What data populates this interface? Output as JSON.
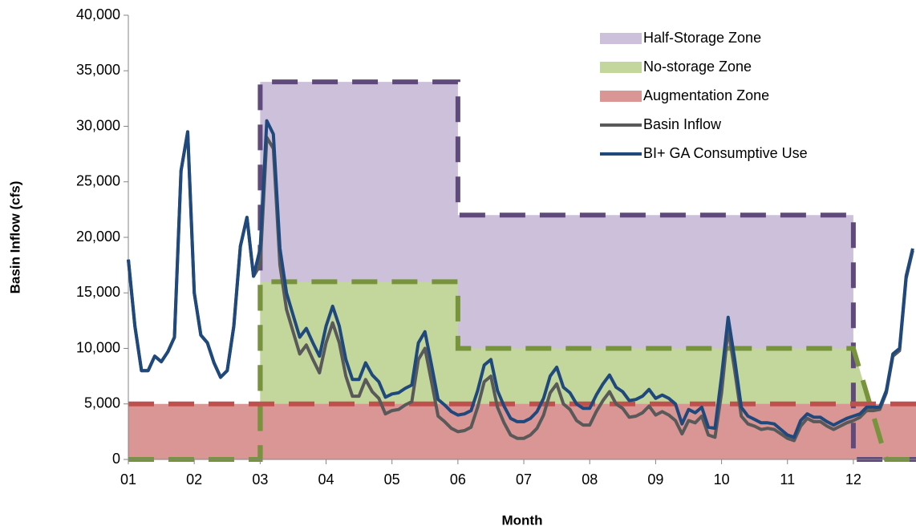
{
  "chart_data": {
    "type": "line",
    "xlabel": "Month",
    "ylabel": "Basin Inflow (cfs)",
    "xlim": [
      1,
      12.95
    ],
    "xticks": [
      {
        "value": 1,
        "label": "01"
      },
      {
        "value": 2,
        "label": "02"
      },
      {
        "value": 3,
        "label": "03"
      },
      {
        "value": 4,
        "label": "04"
      },
      {
        "value": 5,
        "label": "05"
      },
      {
        "value": 6,
        "label": "06"
      },
      {
        "value": 7,
        "label": "07"
      },
      {
        "value": 8,
        "label": "08"
      },
      {
        "value": 9,
        "label": "09"
      },
      {
        "value": 10,
        "label": "10"
      },
      {
        "value": 11,
        "label": "11"
      },
      {
        "value": 12,
        "label": "12"
      }
    ],
    "ylim": [
      0,
      40000
    ],
    "yticks": [
      0,
      {
        "value": 5000,
        "label": "5,000"
      },
      {
        "value": 10000,
        "label": "10,000"
      },
      {
        "value": 15000,
        "label": "15,000"
      },
      {
        "value": 20000,
        "label": "20,000"
      },
      {
        "value": 25000,
        "label": "25,000"
      },
      {
        "value": 30000,
        "label": "30,000"
      },
      {
        "value": 35000,
        "label": "35,000"
      },
      {
        "value": 40000,
        "label": "40,000"
      }
    ],
    "legend": "upper right",
    "x": [
      1.0,
      1.1,
      1.2,
      1.3,
      1.4,
      1.5,
      1.6,
      1.7,
      1.8,
      1.9,
      2.0,
      2.1,
      2.2,
      2.3,
      2.4,
      2.5,
      2.6,
      2.7,
      2.8,
      2.9,
      3.0,
      3.1,
      3.2,
      3.3,
      3.4,
      3.5,
      3.6,
      3.7,
      3.8,
      3.9,
      4.0,
      4.1,
      4.2,
      4.3,
      4.4,
      4.5,
      4.6,
      4.7,
      4.8,
      4.9,
      5.0,
      5.1,
      5.2,
      5.3,
      5.4,
      5.5,
      5.6,
      5.7,
      5.8,
      5.9,
      6.0,
      6.1,
      6.2,
      6.3,
      6.4,
      6.5,
      6.6,
      6.7,
      6.8,
      6.9,
      7.0,
      7.1,
      7.2,
      7.3,
      7.4,
      7.5,
      7.6,
      7.7,
      7.8,
      7.9,
      8.0,
      8.1,
      8.2,
      8.3,
      8.4,
      8.5,
      8.6,
      8.7,
      8.8,
      8.9,
      9.0,
      9.1,
      9.2,
      9.3,
      9.4,
      9.5,
      9.6,
      9.7,
      9.8,
      9.9,
      10.0,
      10.1,
      10.2,
      10.3,
      10.4,
      10.5,
      10.6,
      10.7,
      10.8,
      10.9,
      11.0,
      11.1,
      11.2,
      11.3,
      11.4,
      11.5,
      11.6,
      11.7,
      11.8,
      11.9,
      12.0,
      12.1,
      12.2,
      12.3,
      12.4,
      12.5,
      12.6,
      12.7,
      12.8,
      12.9
    ],
    "series": [
      {
        "name": "Half-Storage Zone",
        "fill": true,
        "color": "#ccc0da",
        "line_color": "#604a7b",
        "x": [
          1,
          3,
          3,
          6,
          6,
          12,
          12,
          12.95
        ],
        "values": [
          0,
          0,
          34000,
          34000,
          22000,
          22000,
          0,
          0
        ]
      },
      {
        "name": "No-storage Zone",
        "fill": true,
        "color": "#c3d69b",
        "line_color": "#77933c",
        "x": [
          1,
          3,
          3,
          6,
          6,
          12,
          12.5,
          12.95
        ],
        "values": [
          0,
          0,
          16000,
          16000,
          10000,
          10000,
          0,
          0
        ]
      },
      {
        "name": "Augmentation Zone",
        "fill": true,
        "color": "#d99694",
        "line_color": "#c0504d",
        "x": [
          1,
          12.95
        ],
        "values": [
          5000,
          5000
        ]
      },
      {
        "name": "Basin Inflow",
        "fill": false,
        "color": "#595959",
        "values": [
          18000,
          12000,
          8000,
          8000,
          9300,
          8800,
          9700,
          11000,
          26000,
          29500,
          15000,
          11200,
          10500,
          8700,
          7400,
          8000,
          12000,
          19200,
          21800,
          16500,
          17500,
          29000,
          28000,
          17500,
          13500,
          11500,
          9500,
          10300,
          9000,
          7800,
          10500,
          12300,
          10500,
          7500,
          5700,
          5700,
          7200,
          6100,
          5500,
          4100,
          4400,
          4500,
          4900,
          5200,
          9000,
          10000,
          7000,
          3900,
          3400,
          2800,
          2500,
          2600,
          2900,
          4700,
          7000,
          7500,
          4700,
          3300,
          2200,
          1900,
          1900,
          2200,
          2800,
          4000,
          6000,
          6800,
          5000,
          4500,
          3500,
          3100,
          3100,
          4300,
          5300,
          6100,
          5000,
          4600,
          3800,
          3900,
          4200,
          4800,
          4000,
          4300,
          4000,
          3500,
          2300,
          3500,
          3300,
          3900,
          2200,
          2000,
          6000,
          11800,
          8000,
          3900,
          3200,
          3000,
          2700,
          2800,
          2700,
          2300,
          1900,
          1700,
          3000,
          3700,
          3400,
          3400,
          3000,
          2700,
          3000,
          3300,
          3500,
          3800,
          4400,
          4400,
          4500,
          6000,
          9300,
          9800,
          16300,
          18800
        ]
      },
      {
        "name": "BI+ GA Consumptive Use",
        "fill": false,
        "color": "#1f497d",
        "values": [
          18000,
          12000,
          8000,
          8000,
          9300,
          8800,
          9700,
          11000,
          26000,
          29500,
          15000,
          11200,
          10500,
          8700,
          7400,
          8000,
          12000,
          19200,
          21800,
          16500,
          19000,
          30500,
          29300,
          19000,
          15000,
          13000,
          11000,
          11800,
          10500,
          9300,
          12000,
          13800,
          12000,
          9000,
          7200,
          7200,
          8700,
          7600,
          7000,
          5600,
          5900,
          6000,
          6400,
          6700,
          10500,
          11500,
          8500,
          5400,
          4900,
          4300,
          4000,
          4100,
          4400,
          6200,
          8500,
          9000,
          6200,
          4800,
          3700,
          3400,
          3400,
          3700,
          4300,
          5500,
          7500,
          8300,
          6500,
          6000,
          5000,
          4600,
          4600,
          5800,
          6800,
          7600,
          6500,
          6100,
          5300,
          5400,
          5700,
          6300,
          5500,
          5800,
          5500,
          5000,
          3200,
          4500,
          4200,
          4700,
          2900,
          2800,
          7500,
          12800,
          9000,
          4700,
          3900,
          3600,
          3300,
          3300,
          3200,
          2700,
          2200,
          2000,
          3500,
          4100,
          3800,
          3800,
          3400,
          3100,
          3400,
          3700,
          3900,
          4100,
          4700,
          4700,
          4700,
          6200,
          9500,
          10000,
          16500,
          19000
        ]
      }
    ]
  }
}
